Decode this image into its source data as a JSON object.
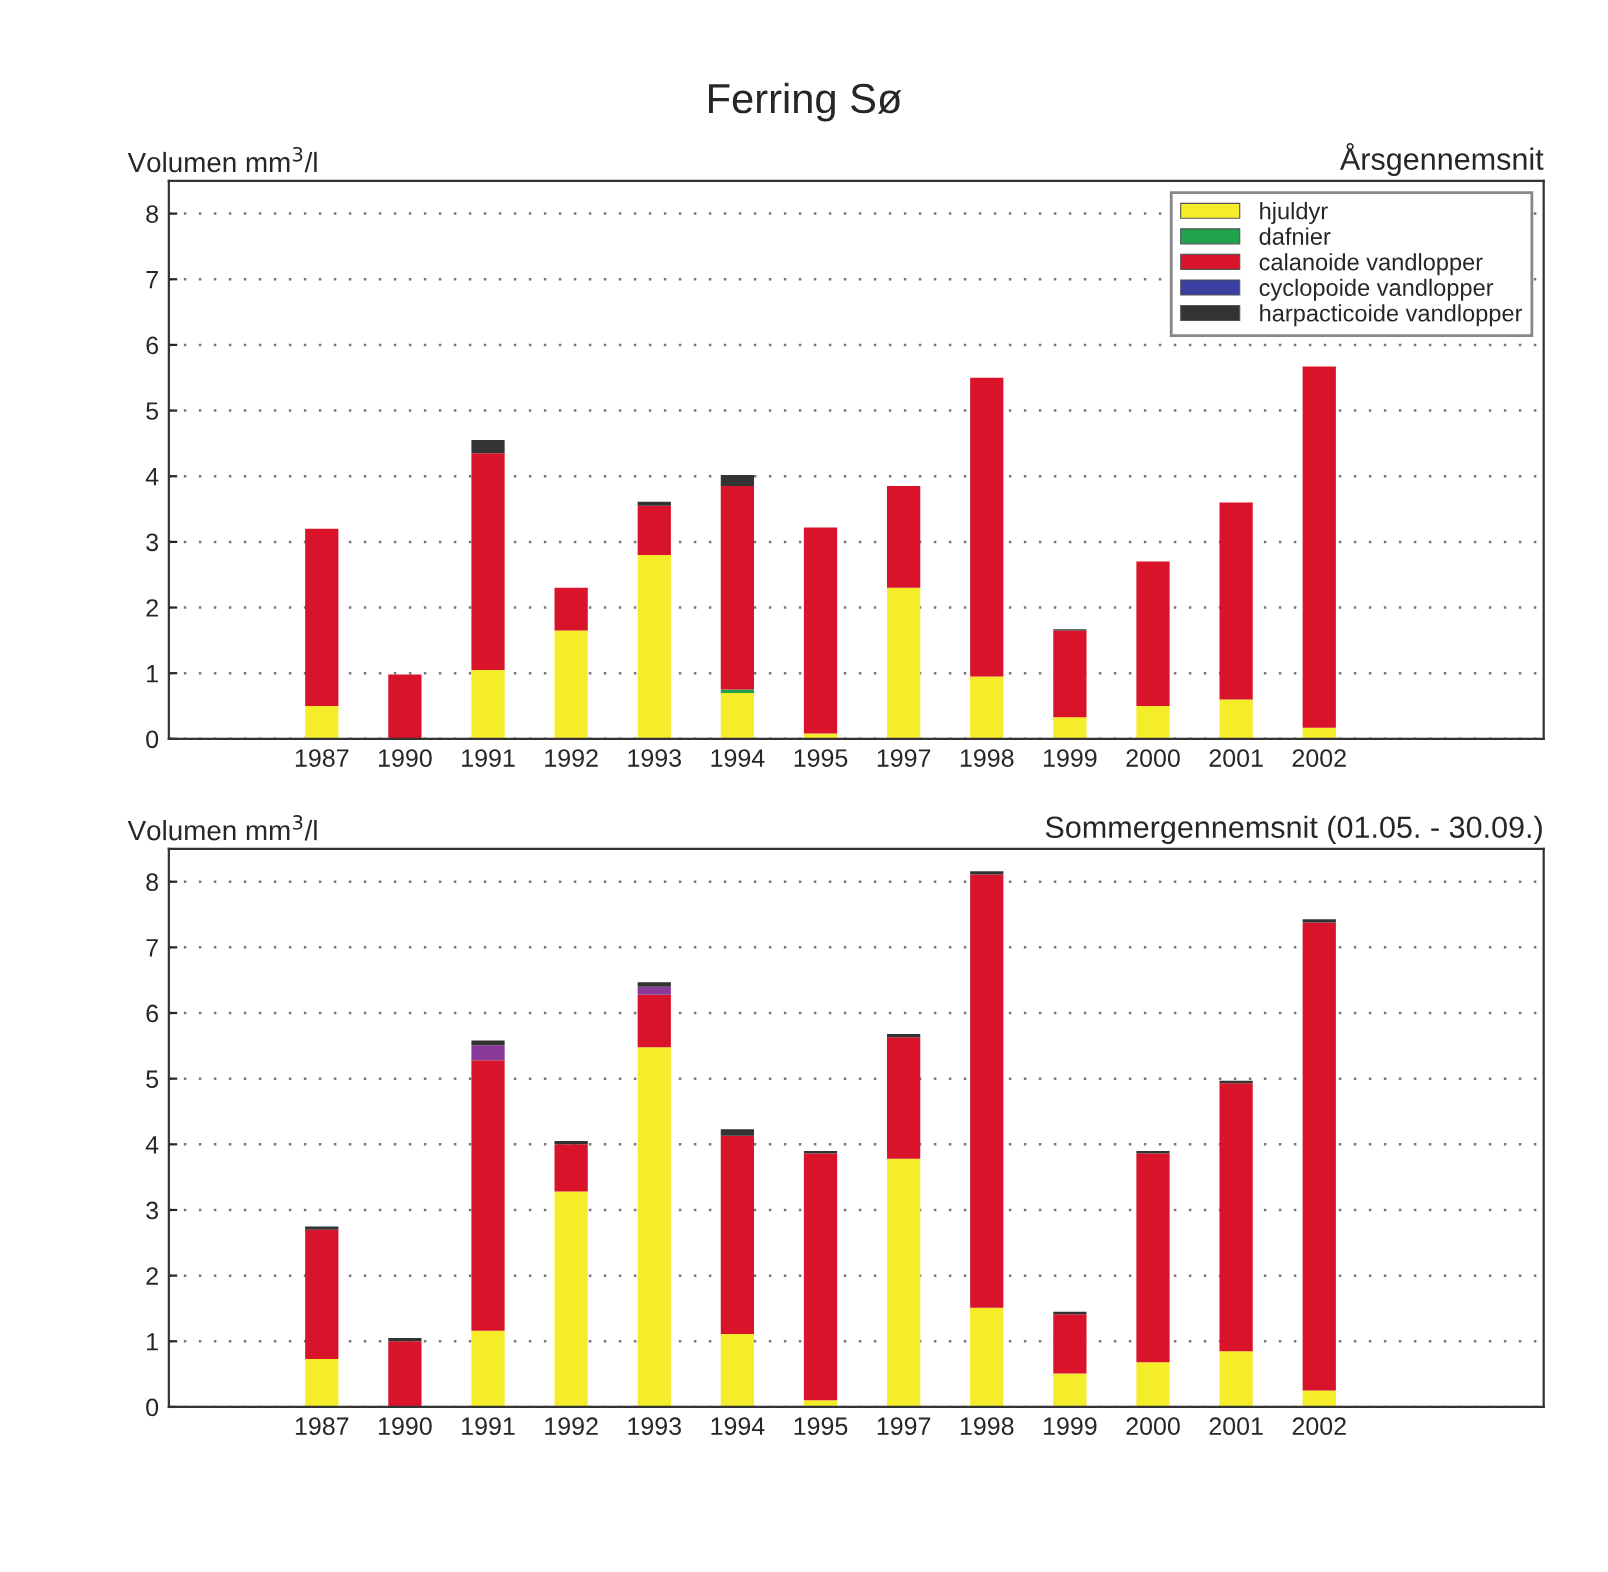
{
  "chart_data": [
    {
      "type": "bar",
      "title": "Ferring Sø",
      "subtitle": "Årsgennemsnit",
      "ylabel": "Volumen mm$^{3}$/l",
      "stacked": true,
      "grid": "y",
      "legend": "top right",
      "categories": [
        "1987",
        "1990",
        "1991",
        "1992",
        "1993",
        "1994",
        "1995",
        "1997",
        "1998",
        "1999",
        "2000",
        "2001",
        "2002"
      ],
      "ylim": [
        0,
        8.5
      ],
      "yticks": [
        0,
        1,
        2,
        3,
        4,
        5,
        6,
        7,
        8
      ],
      "series": [
        {
          "name": "hjuldyr",
          "color": "#f5ec2a",
          "values": [
            0.5,
            0,
            1.05,
            1.65,
            2.8,
            0.7,
            0.08,
            2.3,
            0.95,
            0.33,
            0.5,
            0.6,
            0.17
          ]
        },
        {
          "name": "dafnier",
          "color": "#1ea24a",
          "values": [
            0,
            0,
            0,
            0,
            0,
            0.05,
            0,
            0,
            0,
            0,
            0,
            0,
            0
          ]
        },
        {
          "name": "calanoide vandlopper",
          "color": "#d9142a",
          "values": [
            2.7,
            0.98,
            3.3,
            0.65,
            0.75,
            3.1,
            3.14,
            1.55,
            4.55,
            1.32,
            2.2,
            3.0,
            5.5
          ]
        },
        {
          "name": "cyclopoide vandlopper",
          "color": "#3a3fa0",
          "values": [
            0,
            0,
            0,
            0,
            0,
            0,
            0,
            0,
            0,
            0,
            0,
            0,
            0
          ]
        },
        {
          "name": "harpacticoide vandlopper",
          "color": "#333333",
          "values": [
            0,
            0,
            0.2,
            0,
            0.06,
            0.17,
            0,
            0,
            0,
            0.02,
            0,
            0,
            0
          ]
        }
      ]
    },
    {
      "type": "bar",
      "subtitle": "Sommergennemsnit (01.05. - 30.09.)",
      "ylabel": "Volumen mm$^{3}$/l",
      "stacked": true,
      "grid": "y",
      "categories": [
        "1987",
        "1990",
        "1991",
        "1992",
        "1993",
        "1994",
        "1995",
        "1997",
        "1998",
        "1999",
        "2000",
        "2001",
        "2002"
      ],
      "ylim": [
        0,
        8.5
      ],
      "yticks": [
        0,
        1,
        2,
        3,
        4,
        5,
        6,
        7,
        8
      ],
      "series": [
        {
          "color": "#f5ec2a",
          "values": [
            0.73,
            0,
            1.16,
            3.28,
            5.48,
            1.11,
            0.1,
            3.78,
            1.51,
            0.51,
            0.68,
            0.85,
            0.25
          ]
        },
        {
          "color": "#1ea24a",
          "values": [
            0,
            0,
            0,
            0,
            0,
            0,
            0,
            0,
            0,
            0,
            0,
            0,
            0
          ]
        },
        {
          "color": "#d9142a",
          "values": [
            1.97,
            1.0,
            4.12,
            0.72,
            0.8,
            3.02,
            3.76,
            1.85,
            6.6,
            0.9,
            3.18,
            4.08,
            7.13
          ]
        },
        {
          "color": "#8a3a9a",
          "values": [
            0,
            0,
            0.23,
            0,
            0.12,
            0,
            0,
            0,
            0,
            0,
            0,
            0,
            0
          ]
        },
        {
          "color": "#333333",
          "values": [
            0.05,
            0.05,
            0.07,
            0.05,
            0.07,
            0.1,
            0.04,
            0.05,
            0.05,
            0.04,
            0.04,
            0.04,
            0.05
          ]
        }
      ]
    }
  ]
}
